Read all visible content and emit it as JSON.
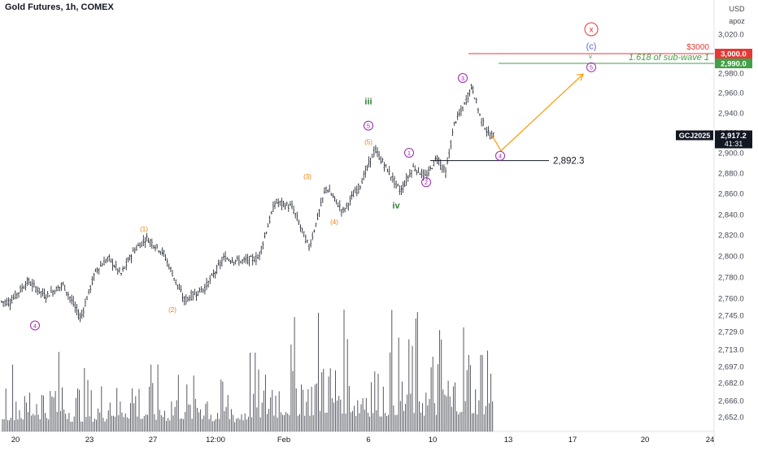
{
  "header": {
    "symbol_title": "Gold Futures, 1h, COMEX",
    "currency": "USD",
    "scale_mode": "apoz"
  },
  "colors": {
    "bars": "#131722",
    "volume": "#434651",
    "wave_purple": "#9c27b0",
    "wave_orange": "#f57c00",
    "wave_green": "#2e7d32",
    "target_red": "#e53935",
    "target_green": "#43a047",
    "projection": "#ff9800",
    "level_line": "#131722",
    "wave_c": "#5c6bc0"
  },
  "chart_data": {
    "type": "ohlc",
    "title": "Gold Futures, 1h, COMEX",
    "ylabel": "USD",
    "ylim": [
      2645,
      3032
    ],
    "price_ticks": [
      3020,
      3000,
      2980,
      2960,
      2940,
      2920,
      2900,
      2880,
      2860,
      2840,
      2820,
      2800,
      2780,
      2760,
      2745,
      2729,
      2713,
      2697,
      2682,
      2666,
      2652
    ],
    "date_ticks": [
      "20",
      "23",
      "27",
      "12:00",
      "Feb",
      "6",
      "10",
      "13",
      "17",
      "20",
      "24"
    ],
    "price_path": [
      {
        "date": "20",
        "price": 2757
      },
      {
        "date": "20",
        "price": 2776
      },
      {
        "date": "20",
        "price": 2762
      },
      {
        "date": "20",
        "price": 2773
      },
      {
        "date": "20",
        "price": 2742
      },
      {
        "date": "23",
        "price": 2786
      },
      {
        "date": "23",
        "price": 2798
      },
      {
        "date": "23",
        "price": 2783
      },
      {
        "date": "23",
        "price": 2805
      },
      {
        "date": "23",
        "price": 2817
      },
      {
        "date": "27",
        "price": 2803
      },
      {
        "date": "27",
        "price": 2758
      },
      {
        "date": "27",
        "price": 2770
      },
      {
        "date": "12:00",
        "price": 2798
      },
      {
        "date": "12:00",
        "price": 2795
      },
      {
        "date": "12:00",
        "price": 2798
      },
      {
        "date": "12:00",
        "price": 2852
      },
      {
        "date": "Feb",
        "price": 2847
      },
      {
        "date": "Feb",
        "price": 2808
      },
      {
        "date": "Feb",
        "price": 2866
      },
      {
        "date": "Feb",
        "price": 2843
      },
      {
        "date": "Feb",
        "price": 2868
      },
      {
        "date": "6",
        "price": 2903
      },
      {
        "date": "6",
        "price": 2883
      },
      {
        "date": "6",
        "price": 2862
      },
      {
        "date": "6",
        "price": 2886
      },
      {
        "date": "6",
        "price": 2876
      },
      {
        "date": "10",
        "price": 2896
      },
      {
        "date": "10",
        "price": 2880
      },
      {
        "date": "10",
        "price": 2930
      },
      {
        "date": "10",
        "price": 2945
      },
      {
        "date": "10",
        "price": 2967
      },
      {
        "date": "10",
        "price": 2935
      },
      {
        "date": "10",
        "price": 2917
      }
    ],
    "volume": [
      {
        "date": "20",
        "level": 0.55
      },
      {
        "date": "20",
        "level": 0.6
      },
      {
        "date": "23",
        "level": 0.45
      },
      {
        "date": "23",
        "level": 0.62
      },
      {
        "date": "27",
        "level": 0.5
      },
      {
        "date": "27",
        "level": 0.58
      },
      {
        "date": "12:00",
        "level": 0.4
      },
      {
        "date": "12:00",
        "level": 0.7
      },
      {
        "date": "Feb",
        "level": 0.85
      },
      {
        "date": "Feb",
        "level": 1.0
      },
      {
        "date": "6",
        "level": 0.8
      },
      {
        "date": "6",
        "level": 0.9
      },
      {
        "date": "10",
        "level": 0.85
      },
      {
        "date": "10",
        "level": 0.95
      }
    ],
    "wave_labels": [
      {
        "text": "4",
        "style": "circled",
        "color": "purple",
        "date": "20",
        "price": 2735
      },
      {
        "text": "(1)",
        "style": "plain",
        "color": "orange",
        "date": "23",
        "price": 2826
      },
      {
        "text": "(2)",
        "style": "plain",
        "color": "orange",
        "date": "27",
        "price": 2750
      },
      {
        "text": "(3)",
        "style": "plain",
        "color": "orange",
        "date": "Feb",
        "price": 2877
      },
      {
        "text": "(4)",
        "style": "plain",
        "color": "orange",
        "date": "Feb",
        "price": 2833
      },
      {
        "text": "(5)",
        "style": "plain",
        "color": "orange",
        "date": "6",
        "price": 2911
      },
      {
        "text": "5",
        "style": "circled",
        "color": "purple",
        "date": "6",
        "price": 2927
      },
      {
        "text": "iii",
        "style": "plain",
        "color": "green",
        "date": "6",
        "price": 2951
      },
      {
        "text": "iv",
        "style": "plain",
        "color": "green",
        "date": "6",
        "price": 2848
      },
      {
        "text": "1",
        "style": "circled",
        "color": "purple",
        "date": "10",
        "price": 2900
      },
      {
        "text": "2",
        "style": "circled",
        "color": "purple",
        "date": "10",
        "price": 2871
      },
      {
        "text": "3",
        "style": "circled",
        "color": "purple",
        "date": "10",
        "price": 2975
      },
      {
        "text": "4",
        "style": "circled",
        "color": "purple",
        "date": "13",
        "price": 2897
      },
      {
        "text": "5",
        "style": "circled",
        "color": "purple",
        "date": "17",
        "price": 2986
      },
      {
        "text": "(c)",
        "style": "plain",
        "color": "blue",
        "date": "17",
        "price": 3007
      },
      {
        "text": "x",
        "style": "circled",
        "color": "red",
        "date": "17",
        "price": 3025
      }
    ],
    "projection_path": [
      {
        "date": "10",
        "price": 2917
      },
      {
        "date": "13",
        "price": 2902
      },
      {
        "date": "17",
        "price": 2979
      }
    ],
    "level_line": {
      "price": 2892.3,
      "label": "2,892.3"
    },
    "targets": [
      {
        "label": "$3000",
        "price": 3000.0,
        "axis_label": "3,000.0",
        "color": "red"
      },
      {
        "label": "1.618 of sub-wave 1",
        "price": 2990.0,
        "axis_label": "2,990.0",
        "color": "green"
      }
    ],
    "current": {
      "symbol": "GCJ2025",
      "price": 2917.2,
      "price_label": "2,917.2",
      "countdown": "41:31"
    }
  }
}
